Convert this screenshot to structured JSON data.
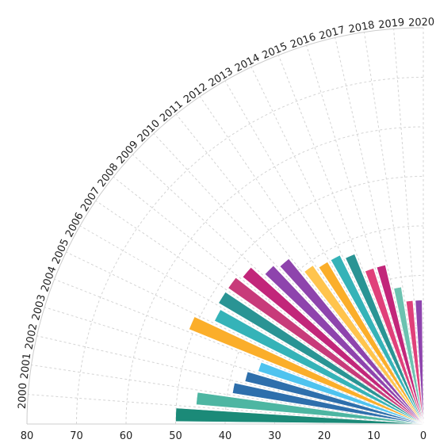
{
  "chart_data": {
    "type": "bar",
    "layout": "polar-quarter",
    "categories": [
      "2000",
      "2001",
      "2002",
      "2003",
      "2004",
      "2005",
      "2006",
      "2007",
      "2008",
      "2009",
      "2010",
      "2011",
      "2012",
      "2013",
      "2014",
      "2015",
      "2016",
      "2017",
      "2018",
      "2019",
      "2020"
    ],
    "values": [
      50,
      46,
      39,
      37,
      35,
      51,
      47,
      48,
      48,
      47,
      44,
      43,
      39,
      38,
      38,
      37,
      33,
      33,
      28,
      25,
      25
    ],
    "radial_axis": {
      "min": 0,
      "max": 80,
      "ticks": [
        "80",
        "70",
        "60",
        "50",
        "40",
        "30",
        "20",
        "10",
        "0"
      ]
    },
    "grid": true,
    "colors": [
      "#1b8a78",
      "#4db6a2",
      "#2e6fac",
      "#2e6fac",
      "#4fc3ef",
      "#fbae2a",
      "#35b3b8",
      "#2a9494",
      "#c83b7a",
      "#c2267a",
      "#8e44ad",
      "#8e44ad",
      "#ffc44d",
      "#fbae2a",
      "#35b3b8",
      "#2a9494",
      "#e0407a",
      "#c2267a",
      "#6cc2b0",
      "#e0407a",
      "#8e44ad"
    ]
  }
}
